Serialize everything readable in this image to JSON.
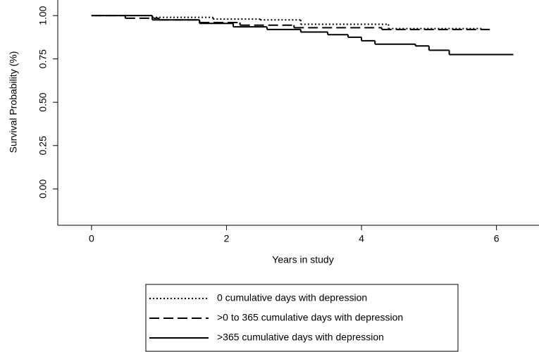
{
  "chart_data": {
    "type": "step",
    "xlabel": "Years in study",
    "ylabel": "Survival Probability (%)",
    "xlim": [
      -0.5,
      6.63
    ],
    "ylim": [
      -0.21,
      1.09
    ],
    "xticks": [
      0,
      2,
      4,
      6
    ],
    "yticks": [
      {
        "value": 0,
        "label": "0.00"
      },
      {
        "value": 0.25,
        "label": "0.25"
      },
      {
        "value": 0.5,
        "label": "0.50"
      },
      {
        "value": 0.75,
        "label": "0.75"
      },
      {
        "value": 1,
        "label": "1.00"
      }
    ],
    "legend": "bottom",
    "series": [
      {
        "name": "0 cumulative days with depression",
        "color": "#000000",
        "linestyle": "dotted",
        "x": [
          0,
          0.9,
          1.8,
          2.5,
          3.1,
          4.4,
          5.8
        ],
        "values": [
          1,
          0.99,
          0.98,
          0.975,
          0.95,
          0.925,
          0.925
        ]
      },
      {
        "name": ">0 to 365 cumulative days with depression",
        "color": "#000000",
        "linestyle": "dashed",
        "x": [
          0,
          0.5,
          1,
          1.6,
          2.2,
          3,
          4.3,
          5.9
        ],
        "values": [
          1,
          0.985,
          0.975,
          0.96,
          0.945,
          0.93,
          0.92,
          0.92
        ]
      },
      {
        "name": ">365 cumulative days with depression",
        "color": "#000000",
        "linestyle": "solid",
        "x": [
          0,
          0.9,
          1.6,
          2.1,
          2.6,
          3.1,
          3.5,
          3.8,
          4.0,
          4.2,
          4.8,
          5.0,
          5.3,
          6.25
        ],
        "values": [
          1,
          0.975,
          0.955,
          0.935,
          0.92,
          0.905,
          0.89,
          0.875,
          0.855,
          0.835,
          0.825,
          0.8,
          0.775,
          0.775
        ]
      }
    ]
  }
}
